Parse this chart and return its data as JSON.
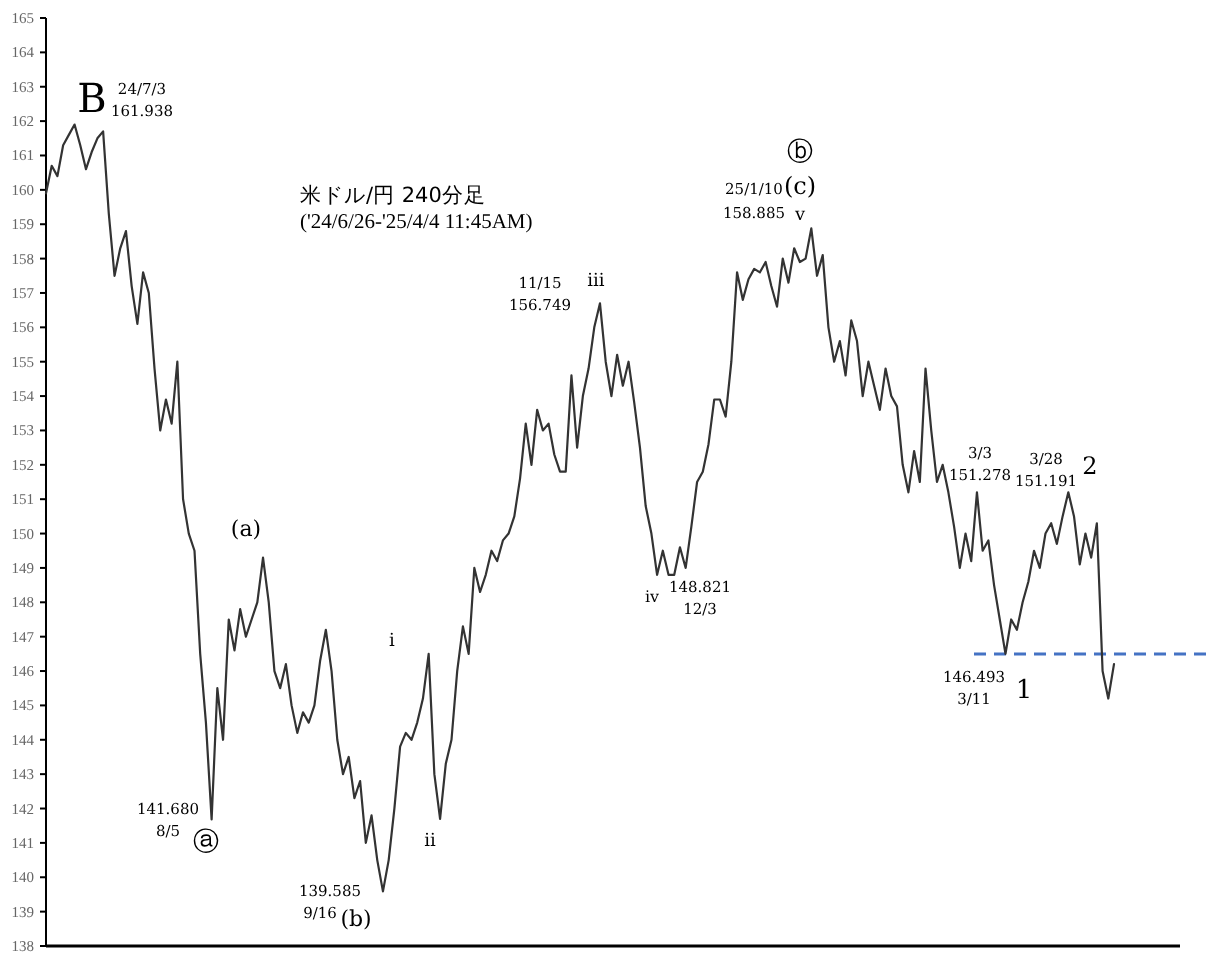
{
  "chart_data": {
    "type": "line",
    "title": "米ドル/円 240分足",
    "subtitle": "('24/6/26-'25/4/4 11:45AM)",
    "color": "#333333",
    "tick_labels": "y",
    "marker": "none",
    "ylim": [
      138,
      165
    ],
    "yticks": [
      138,
      139,
      140,
      141,
      142,
      143,
      144,
      145,
      146,
      147,
      148,
      149,
      150,
      151,
      152,
      153,
      154,
      155,
      156,
      157,
      158,
      159,
      160,
      161,
      162,
      163,
      164,
      165
    ],
    "ref_lines": [
      {
        "axis": "y",
        "value": 146.493,
        "color": "#4472c4",
        "line_style": "dashed"
      }
    ],
    "annotations": [
      "B",
      "24/7/3",
      "161.938",
      "11/15",
      "156.749",
      "iii",
      "ⓑ",
      "(c)",
      "25/1/10",
      "158.885",
      "v",
      "3/3",
      "151.278",
      "3/28",
      "151.191",
      "2",
      "(a)",
      "i",
      "ii",
      "iv",
      "148.821",
      "12/3",
      "146.493",
      "3/11",
      "1",
      "141.680",
      "8/5",
      "ⓐ",
      "139.585",
      "9/16",
      "(b)"
    ],
    "categories": [
      null,
      null,
      null,
      null,
      null,
      null,
      null,
      null,
      null,
      null,
      null,
      null,
      null,
      null,
      null,
      null,
      null,
      null,
      null,
      null,
      null,
      null,
      null,
      null,
      null,
      null,
      null,
      null,
      null,
      null,
      null,
      null,
      null,
      null,
      null,
      null,
      null,
      null,
      null,
      null,
      null,
      null,
      null,
      null,
      null,
      null,
      null,
      null,
      null,
      null,
      null,
      null,
      null,
      null,
      null,
      null,
      null,
      null,
      null,
      null,
      null,
      null,
      null,
      null,
      null,
      null,
      null,
      null,
      null,
      null,
      null,
      null,
      null,
      null,
      null,
      null,
      null,
      null,
      null,
      null,
      null,
      null,
      null,
      null,
      null,
      null,
      null,
      null,
      null,
      null,
      null,
      null,
      null,
      null,
      null,
      null,
      null,
      null,
      null,
      null,
      null,
      null,
      null,
      null,
      null,
      null,
      null,
      null,
      null,
      null,
      null,
      null,
      null,
      null,
      null,
      null,
      null,
      null,
      null,
      null,
      null,
      null,
      null,
      null,
      null,
      null,
      null,
      null,
      null,
      null,
      null,
      null,
      null,
      null,
      null,
      null,
      null,
      null,
      null,
      null,
      null,
      null,
      null,
      null,
      null,
      null,
      null,
      null,
      null,
      null,
      null,
      null,
      null,
      null,
      null,
      null,
      null,
      null,
      null,
      null,
      null,
      null,
      null,
      null,
      null,
      null,
      null,
      null,
      null,
      null,
      null,
      null,
      null,
      null,
      null,
      null,
      null,
      null,
      null,
      null,
      null,
      null,
      null,
      null,
      null,
      null,
      null,
      null
    ],
    "values": [
      159.9,
      160.7,
      160.4,
      161.3,
      161.6,
      161.9,
      161.3,
      160.6,
      161.1,
      161.5,
      161.7,
      159.3,
      157.5,
      158.3,
      158.8,
      157.2,
      156.1,
      157.6,
      157.0,
      154.8,
      153.0,
      153.9,
      153.2,
      155.0,
      151.0,
      150.0,
      149.5,
      146.5,
      144.5,
      141.68,
      145.5,
      144.0,
      147.5,
      146.6,
      147.8,
      147.0,
      147.5,
      148.0,
      149.3,
      148.0,
      146.0,
      145.5,
      146.2,
      145.0,
      144.2,
      144.8,
      144.5,
      145.0,
      146.3,
      147.2,
      146.0,
      144.0,
      143.0,
      143.5,
      142.3,
      142.8,
      141.0,
      141.8,
      140.5,
      139.59,
      140.5,
      142.0,
      143.8,
      144.2,
      144.0,
      144.5,
      145.2,
      146.5,
      143.0,
      141.7,
      143.3,
      144.0,
      146.0,
      147.3,
      146.5,
      149.0,
      148.3,
      148.8,
      149.5,
      149.2,
      149.8,
      150.0,
      150.5,
      151.6,
      153.2,
      152.0,
      153.6,
      153.0,
      153.2,
      152.3,
      151.8,
      151.8,
      154.6,
      152.5,
      154.0,
      154.8,
      156.0,
      156.7,
      155.0,
      154.0,
      155.2,
      154.3,
      155.0,
      153.8,
      152.5,
      150.8,
      150.0,
      148.8,
      149.5,
      148.8,
      148.8,
      149.6,
      149.0,
      150.2,
      151.5,
      151.8,
      152.6,
      153.9,
      153.9,
      153.4,
      155.0,
      157.6,
      156.8,
      157.4,
      157.7,
      157.6,
      157.9,
      157.2,
      156.6,
      158.0,
      157.3,
      158.3,
      157.9,
      158.0,
      158.88,
      157.5,
      158.1,
      156.0,
      155.0,
      155.6,
      154.6,
      156.2,
      155.6,
      154.0,
      155.0,
      154.3,
      153.6,
      154.8,
      154.0,
      153.7,
      152.0,
      151.2,
      152.4,
      151.5,
      154.8,
      153.0,
      151.5,
      152.0,
      151.2,
      150.2,
      149.0,
      150.0,
      149.2,
      151.2,
      149.5,
      149.8,
      148.5,
      147.5,
      146.5,
      147.5,
      147.2,
      148.0,
      148.6,
      149.5,
      149.0,
      150.0,
      150.3,
      149.7,
      150.5,
      151.2,
      150.5,
      149.1,
      150.0,
      149.3,
      150.3,
      146.0,
      145.2,
      146.2
    ]
  }
}
